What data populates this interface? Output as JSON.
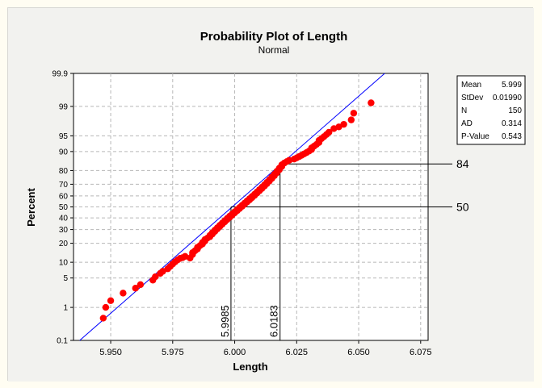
{
  "chart_data": {
    "type": "scatter",
    "title": "Probability Plot of Length",
    "subtitle": "Normal",
    "xlabel": "Length",
    "ylabel": "Percent",
    "xlim": [
      5.935,
      6.078
    ],
    "x_ticks": [
      5.95,
      5.975,
      6.0,
      6.025,
      6.05,
      6.075
    ],
    "x_tick_labels": [
      "5.950",
      "5.975",
      "6.000",
      "6.025",
      "6.050",
      "6.075"
    ],
    "y_ticks": [
      0.1,
      1,
      5,
      10,
      20,
      30,
      40,
      50,
      60,
      70,
      80,
      90,
      95,
      99,
      99.9
    ],
    "y_tick_labels": [
      "0.1",
      "1",
      "5",
      "10",
      "20",
      "30",
      "40",
      "50",
      "60",
      "70",
      "80",
      "90",
      "95",
      "99",
      "99.9"
    ],
    "y_scale": "normal-probability",
    "grid": true,
    "fit_line": {
      "mean": 5.999,
      "stdev": 0.0199,
      "color": "#0000ff"
    },
    "points_color": "#ff0000",
    "reference_lines": [
      {
        "percent": 84,
        "x": 6.0183,
        "percent_label": "84",
        "x_label": "6.0183"
      },
      {
        "percent": 50,
        "x": 5.9985,
        "percent_label": "50",
        "x_label": "5.9985"
      }
    ],
    "stats": [
      {
        "name": "Mean",
        "value": "5.999"
      },
      {
        "name": "StDev",
        "value": "0.01990"
      },
      {
        "name": "N",
        "value": "150"
      },
      {
        "name": "AD",
        "value": "0.314"
      },
      {
        "name": "P-Value",
        "value": "0.543"
      }
    ],
    "points": [
      {
        "x": 5.947,
        "y": 0.5
      },
      {
        "x": 5.948,
        "y": 1.0
      },
      {
        "x": 5.95,
        "y": 1.5
      },
      {
        "x": 5.955,
        "y": 2.3
      },
      {
        "x": 5.96,
        "y": 3.0
      },
      {
        "x": 5.962,
        "y": 3.6
      },
      {
        "x": 5.967,
        "y": 4.5
      },
      {
        "x": 5.968,
        "y": 5.3
      },
      {
        "x": 5.97,
        "y": 6.2
      },
      {
        "x": 5.971,
        "y": 6.8
      },
      {
        "x": 5.973,
        "y": 7.6
      },
      {
        "x": 5.974,
        "y": 8.4
      },
      {
        "x": 5.975,
        "y": 9.3
      },
      {
        "x": 5.976,
        "y": 10.2
      },
      {
        "x": 5.977,
        "y": 11.0
      },
      {
        "x": 5.978,
        "y": 11.7
      },
      {
        "x": 5.979,
        "y": 12.0
      },
      {
        "x": 5.98,
        "y": 12.6
      },
      {
        "x": 5.982,
        "y": 11.8
      },
      {
        "x": 5.983,
        "y": 13.5
      },
      {
        "x": 5.983,
        "y": 14.5
      },
      {
        "x": 5.984,
        "y": 15.5
      },
      {
        "x": 5.985,
        "y": 16.5
      },
      {
        "x": 5.985,
        "y": 17.5
      },
      {
        "x": 5.986,
        "y": 18.5
      },
      {
        "x": 5.987,
        "y": 19.5
      },
      {
        "x": 5.987,
        "y": 20.5
      },
      {
        "x": 5.988,
        "y": 21.5
      },
      {
        "x": 5.988,
        "y": 22.5
      },
      {
        "x": 5.989,
        "y": 23.5
      },
      {
        "x": 5.99,
        "y": 24.5
      },
      {
        "x": 5.99,
        "y": 25.5
      },
      {
        "x": 5.991,
        "y": 26.5
      },
      {
        "x": 5.991,
        "y": 27.5
      },
      {
        "x": 5.992,
        "y": 28.5
      },
      {
        "x": 5.992,
        "y": 29.5
      },
      {
        "x": 5.993,
        "y": 30.5
      },
      {
        "x": 5.993,
        "y": 31.5
      },
      {
        "x": 5.994,
        "y": 32.5
      },
      {
        "x": 5.994,
        "y": 33.5
      },
      {
        "x": 5.995,
        "y": 34.5
      },
      {
        "x": 5.995,
        "y": 35.5
      },
      {
        "x": 5.996,
        "y": 36.5
      },
      {
        "x": 5.996,
        "y": 37.5
      },
      {
        "x": 5.997,
        "y": 38.5
      },
      {
        "x": 5.997,
        "y": 39.5
      },
      {
        "x": 5.998,
        "y": 40.5
      },
      {
        "x": 5.998,
        "y": 41.5
      },
      {
        "x": 5.999,
        "y": 42.5
      },
      {
        "x": 5.999,
        "y": 43.5
      },
      {
        "x": 6.0,
        "y": 44.5
      },
      {
        "x": 6.0,
        "y": 45.5
      },
      {
        "x": 6.001,
        "y": 46.5
      },
      {
        "x": 6.001,
        "y": 47.5
      },
      {
        "x": 6.002,
        "y": 48.5
      },
      {
        "x": 6.002,
        "y": 49.5
      },
      {
        "x": 6.003,
        "y": 50.5
      },
      {
        "x": 6.003,
        "y": 51.5
      },
      {
        "x": 6.004,
        "y": 52.5
      },
      {
        "x": 6.004,
        "y": 53.5
      },
      {
        "x": 6.005,
        "y": 54.5
      },
      {
        "x": 6.005,
        "y": 55.5
      },
      {
        "x": 6.006,
        "y": 56.5
      },
      {
        "x": 6.006,
        "y": 57.5
      },
      {
        "x": 6.007,
        "y": 58.5
      },
      {
        "x": 6.007,
        "y": 59.5
      },
      {
        "x": 6.008,
        "y": 60.5
      },
      {
        "x": 6.008,
        "y": 61.5
      },
      {
        "x": 6.009,
        "y": 62.5
      },
      {
        "x": 6.009,
        "y": 63.5
      },
      {
        "x": 6.01,
        "y": 64.5
      },
      {
        "x": 6.01,
        "y": 65.5
      },
      {
        "x": 6.011,
        "y": 66.5
      },
      {
        "x": 6.011,
        "y": 67.5
      },
      {
        "x": 6.012,
        "y": 68.5
      },
      {
        "x": 6.012,
        "y": 69.5
      },
      {
        "x": 6.013,
        "y": 70.5
      },
      {
        "x": 6.013,
        "y": 71.5
      },
      {
        "x": 6.014,
        "y": 72.5
      },
      {
        "x": 6.014,
        "y": 73.5
      },
      {
        "x": 6.015,
        "y": 74.5
      },
      {
        "x": 6.015,
        "y": 75.5
      },
      {
        "x": 6.016,
        "y": 76.5
      },
      {
        "x": 6.016,
        "y": 77.5
      },
      {
        "x": 6.017,
        "y": 78.5
      },
      {
        "x": 6.017,
        "y": 79.5
      },
      {
        "x": 6.018,
        "y": 80.5
      },
      {
        "x": 6.018,
        "y": 81.5
      },
      {
        "x": 6.019,
        "y": 82.5
      },
      {
        "x": 6.019,
        "y": 83.5
      },
      {
        "x": 6.02,
        "y": 84.5
      },
      {
        "x": 6.021,
        "y": 85.3
      },
      {
        "x": 6.022,
        "y": 86.0
      },
      {
        "x": 6.024,
        "y": 86.6
      },
      {
        "x": 6.025,
        "y": 87.2
      },
      {
        "x": 6.026,
        "y": 87.8
      },
      {
        "x": 6.027,
        "y": 88.4
      },
      {
        "x": 6.028,
        "y": 89.0
      },
      {
        "x": 6.029,
        "y": 89.6
      },
      {
        "x": 6.03,
        "y": 90.2
      },
      {
        "x": 6.031,
        "y": 90.8
      },
      {
        "x": 6.031,
        "y": 91.4
      },
      {
        "x": 6.032,
        "y": 92.0
      },
      {
        "x": 6.033,
        "y": 92.6
      },
      {
        "x": 6.034,
        "y": 93.2
      },
      {
        "x": 6.034,
        "y": 93.8
      },
      {
        "x": 6.035,
        "y": 94.3
      },
      {
        "x": 6.036,
        "y": 94.8
      },
      {
        "x": 6.037,
        "y": 95.3
      },
      {
        "x": 6.038,
        "y": 95.8
      },
      {
        "x": 6.04,
        "y": 96.5
      },
      {
        "x": 6.042,
        "y": 96.8
      },
      {
        "x": 6.044,
        "y": 97.2
      },
      {
        "x": 6.047,
        "y": 97.8
      },
      {
        "x": 6.048,
        "y": 98.5
      },
      {
        "x": 6.055,
        "y": 99.2
      }
    ]
  }
}
